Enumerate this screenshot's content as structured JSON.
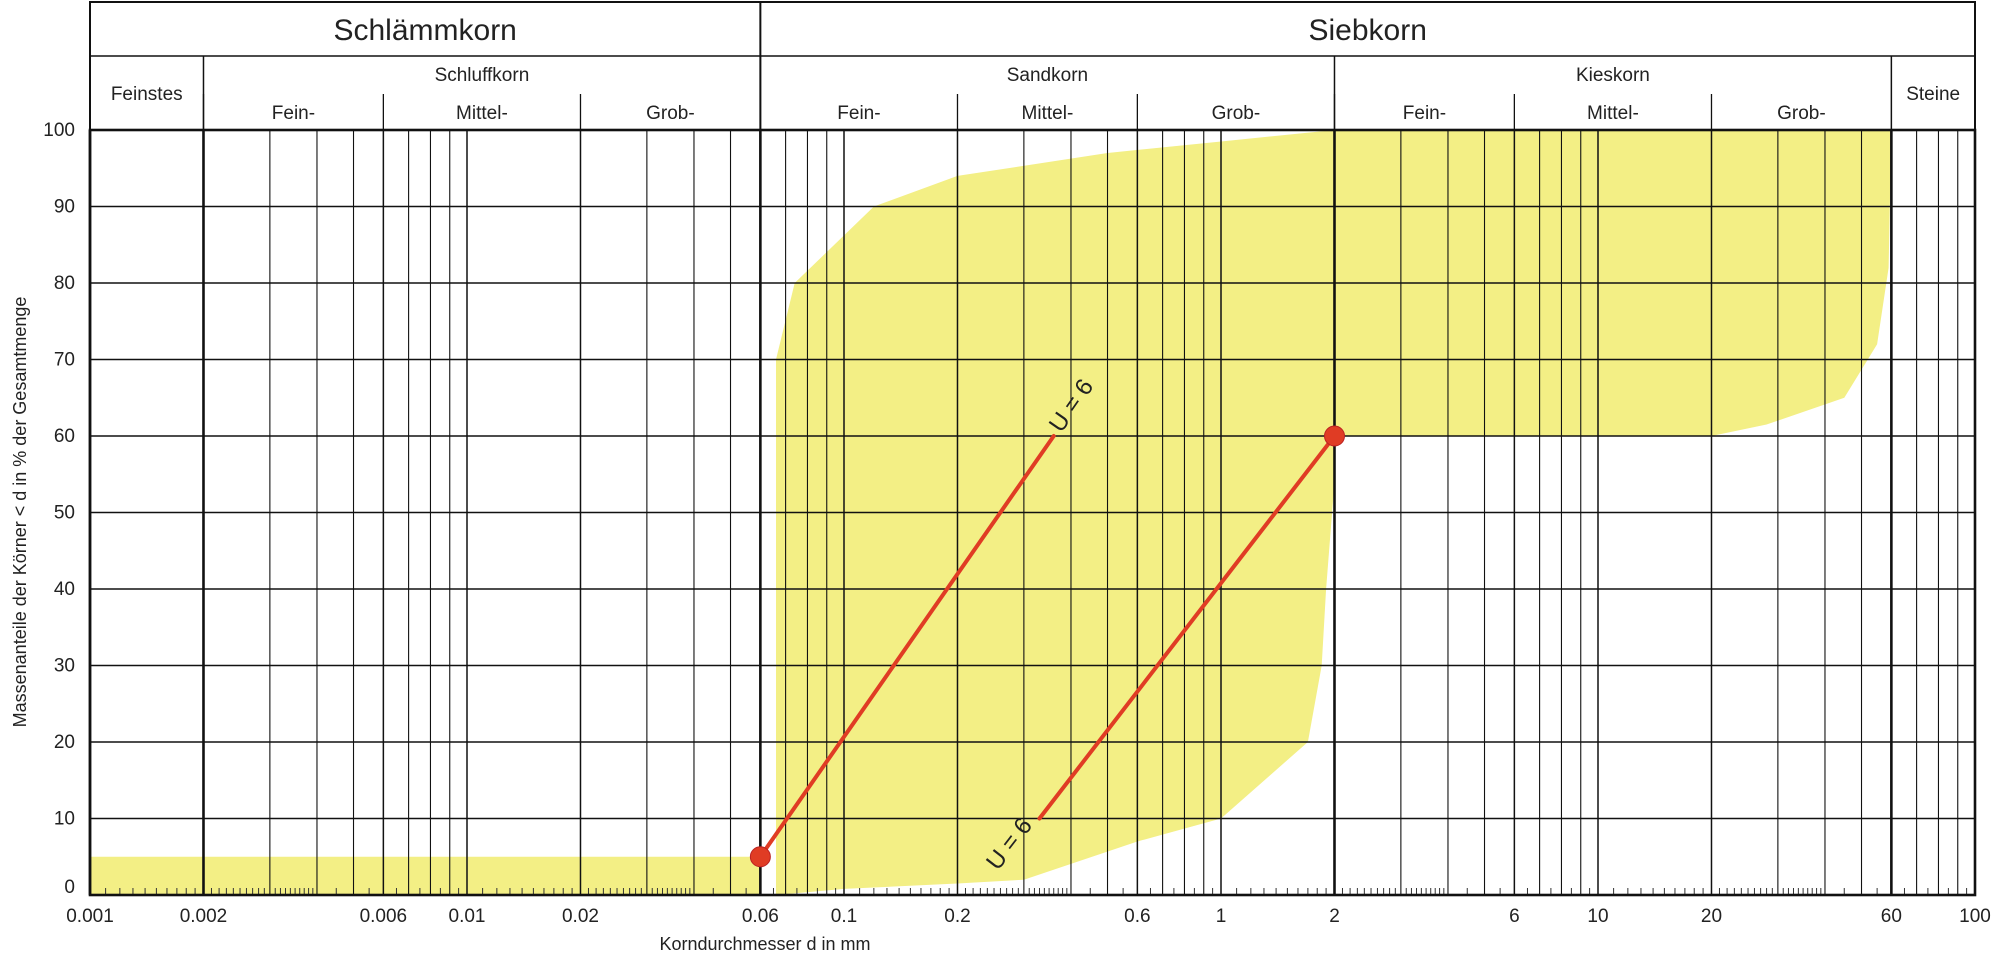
{
  "chart_data": {
    "type": "area",
    "x_scale": "log",
    "xlim": [
      0.001,
      100
    ],
    "ylim": [
      0,
      100
    ],
    "grid": true,
    "xlabel": "Korndurchmesser d in mm",
    "ylabel": "Massenanteile der Körner < d in % der Gesamtmenge",
    "yticks": [
      0,
      10,
      20,
      30,
      40,
      50,
      60,
      70,
      80,
      90,
      100
    ],
    "xtick_labels": [
      {
        "value": 0.001,
        "label": "0.001"
      },
      {
        "value": 0.002,
        "label": "0.002"
      },
      {
        "value": 0.006,
        "label": "0.006"
      },
      {
        "value": 0.01,
        "label": "0.01"
      },
      {
        "value": 0.02,
        "label": "0.02"
      },
      {
        "value": 0.06,
        "label": "0.06"
      },
      {
        "value": 0.1,
        "label": "0.1"
      },
      {
        "value": 0.2,
        "label": "0.2"
      },
      {
        "value": 0.6,
        "label": "0.6"
      },
      {
        "value": 1,
        "label": "1"
      },
      {
        "value": 2,
        "label": "2"
      },
      {
        "value": 6,
        "label": "6"
      },
      {
        "value": 10,
        "label": "10"
      },
      {
        "value": 20,
        "label": "20"
      },
      {
        "value": 60,
        "label": "60"
      },
      {
        "value": 100,
        "label": "100"
      }
    ],
    "header": {
      "top": [
        {
          "label": "Schlämmkorn",
          "from": 0.001,
          "to": 0.06
        },
        {
          "label": "Siebkorn",
          "from": 0.06,
          "to": 100
        }
      ],
      "groups": [
        {
          "label": "Feinstes",
          "from": 0.001,
          "to": 0.002,
          "full_height": true
        },
        {
          "label": "Schluffkorn",
          "from": 0.002,
          "to": 0.06
        },
        {
          "label": "Sandkorn",
          "from": 0.06,
          "to": 2
        },
        {
          "label": "Kieskorn",
          "from": 2,
          "to": 60
        },
        {
          "label": "Steine",
          "from": 60,
          "to": 100,
          "full_height": true
        }
      ],
      "subs": [
        {
          "label": "Fein-",
          "from": 0.002,
          "to": 0.006
        },
        {
          "label": "Mittel-",
          "from": 0.006,
          "to": 0.02
        },
        {
          "label": "Grob-",
          "from": 0.02,
          "to": 0.06
        },
        {
          "label": "Fein-",
          "from": 0.06,
          "to": 0.2
        },
        {
          "label": "Mittel-",
          "from": 0.2,
          "to": 0.6
        },
        {
          "label": "Grob-",
          "from": 0.6,
          "to": 2
        },
        {
          "label": "Fein-",
          "from": 2,
          "to": 6
        },
        {
          "label": "Mittel-",
          "from": 6,
          "to": 20
        },
        {
          "label": "Grob-",
          "from": 20,
          "to": 60
        }
      ]
    },
    "series": [
      {
        "color": "#f3ef85",
        "polygon": [
          [
            0.001,
            0
          ],
          [
            0.001,
            5
          ],
          [
            0.06,
            5
          ],
          [
            0.06,
            0
          ]
        ]
      },
      {
        "color": "#f3ef85",
        "polygon": [
          [
            0.066,
            0
          ],
          [
            0.066,
            70
          ],
          [
            0.074,
            80
          ],
          [
            0.12,
            90
          ],
          [
            0.2,
            94
          ],
          [
            0.5,
            97
          ],
          [
            1,
            98.5
          ],
          [
            2,
            100
          ],
          [
            60,
            100
          ],
          [
            60,
            100
          ],
          [
            59,
            82
          ],
          [
            55,
            72
          ],
          [
            45,
            65
          ],
          [
            28,
            61.5
          ],
          [
            20,
            60
          ],
          [
            2,
            60
          ],
          [
            2,
            54
          ],
          [
            1.9,
            40
          ],
          [
            1.85,
            30
          ],
          [
            1.7,
            20
          ],
          [
            1,
            10
          ],
          [
            0.6,
            7
          ],
          [
            0.3,
            2
          ],
          [
            0.2,
            1.5
          ],
          [
            0.1,
            0.8
          ],
          [
            0.066,
            0
          ]
        ]
      }
    ],
    "lines": [
      {
        "color": "#e03c24",
        "points": [
          [
            0.06,
            5
          ],
          [
            0.36,
            60
          ]
        ],
        "label": "U = 6"
      },
      {
        "color": "#e03c24",
        "points": [
          [
            0.33,
            10
          ],
          [
            2,
            60
          ]
        ],
        "label": "U = 6"
      }
    ],
    "markers": [
      {
        "color": "#e03c24",
        "x": 0.06,
        "y": 5
      },
      {
        "color": "#e03c24",
        "x": 2,
        "y": 60
      }
    ]
  }
}
